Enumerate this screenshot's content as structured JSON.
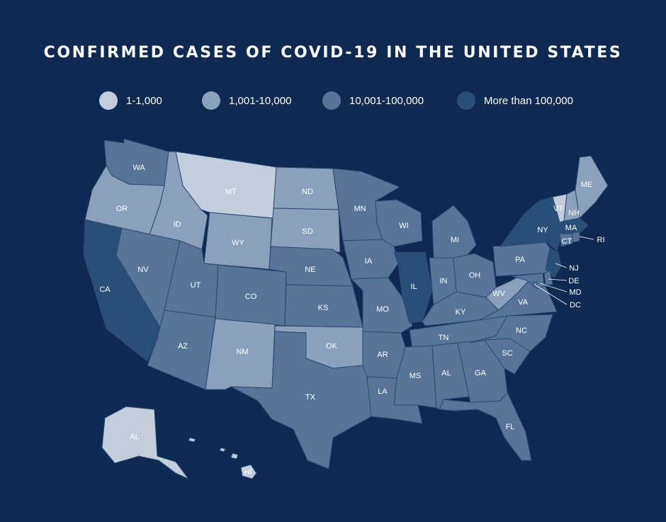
{
  "title": "CONFIRMED CASES OF COVID-19 IN THE UNITED STATES",
  "legend": [
    {
      "key": "c1",
      "label": "1-1,000",
      "color": "#c3cedd"
    },
    {
      "key": "c2",
      "label": "1,001-10,000",
      "color": "#8ba0ba"
    },
    {
      "key": "c3",
      "label": "10,001-100,000",
      "color": "#57759a"
    },
    {
      "key": "c4",
      "label": "More than 100,000",
      "color": "#284f78"
    }
  ],
  "states": [
    {
      "abbr": "WA",
      "category": "c3"
    },
    {
      "abbr": "OR",
      "category": "c2"
    },
    {
      "abbr": "CA",
      "category": "c4"
    },
    {
      "abbr": "ID",
      "category": "c2"
    },
    {
      "abbr": "NV",
      "category": "c3"
    },
    {
      "abbr": "MT",
      "category": "c1"
    },
    {
      "abbr": "WY",
      "category": "c2"
    },
    {
      "abbr": "UT",
      "category": "c3"
    },
    {
      "abbr": "AZ",
      "category": "c3"
    },
    {
      "abbr": "CO",
      "category": "c3"
    },
    {
      "abbr": "NM",
      "category": "c2"
    },
    {
      "abbr": "ND",
      "category": "c2"
    },
    {
      "abbr": "SD",
      "category": "c2"
    },
    {
      "abbr": "NE",
      "category": "c3"
    },
    {
      "abbr": "KS",
      "category": "c3"
    },
    {
      "abbr": "OK",
      "category": "c2"
    },
    {
      "abbr": "TX",
      "category": "c3"
    },
    {
      "abbr": "MN",
      "category": "c3"
    },
    {
      "abbr": "IA",
      "category": "c3"
    },
    {
      "abbr": "MO",
      "category": "c3"
    },
    {
      "abbr": "AR",
      "category": "c3"
    },
    {
      "abbr": "LA",
      "category": "c3"
    },
    {
      "abbr": "WI",
      "category": "c3"
    },
    {
      "abbr": "IL",
      "category": "c4"
    },
    {
      "abbr": "MI",
      "category": "c3"
    },
    {
      "abbr": "IN",
      "category": "c3"
    },
    {
      "abbr": "OH",
      "category": "c3"
    },
    {
      "abbr": "KY",
      "category": "c3"
    },
    {
      "abbr": "TN",
      "category": "c3"
    },
    {
      "abbr": "MS",
      "category": "c3"
    },
    {
      "abbr": "AL",
      "category": "c3"
    },
    {
      "abbr": "GA",
      "category": "c3"
    },
    {
      "abbr": "FL",
      "category": "c3"
    },
    {
      "abbr": "SC",
      "category": "c3"
    },
    {
      "abbr": "NC",
      "category": "c3"
    },
    {
      "abbr": "VA",
      "category": "c3"
    },
    {
      "abbr": "WV",
      "category": "c2"
    },
    {
      "abbr": "PA",
      "category": "c3"
    },
    {
      "abbr": "NY",
      "category": "c4"
    },
    {
      "abbr": "VT",
      "category": "c1"
    },
    {
      "abbr": "NH",
      "category": "c2"
    },
    {
      "abbr": "ME",
      "category": "c2"
    },
    {
      "abbr": "MA",
      "category": "c4"
    },
    {
      "abbr": "CT",
      "category": "c3"
    },
    {
      "abbr": "RI",
      "category": "c3"
    },
    {
      "abbr": "NJ",
      "category": "c4"
    },
    {
      "abbr": "DE",
      "category": "c3"
    },
    {
      "abbr": "MD",
      "category": "c3"
    },
    {
      "abbr": "DC",
      "category": "c3"
    },
    {
      "abbr": "AL",
      "category": "c1",
      "note": "Alaska (labeled AL on map)"
    },
    {
      "abbr": "HI",
      "category": "c1"
    }
  ]
}
